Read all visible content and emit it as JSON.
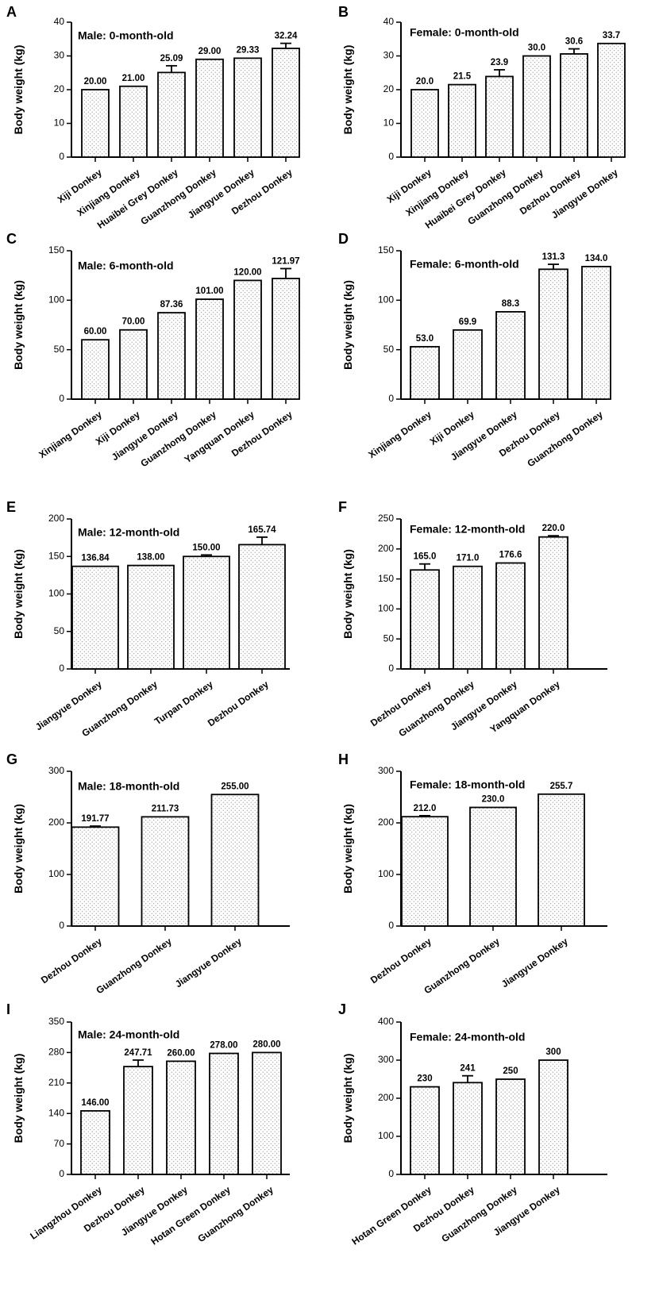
{
  "chart_data": [
    {
      "type": "bar",
      "panel": "A",
      "title": "Male: 0-month-old",
      "ylabel": "Body weight (kg)",
      "xlabel": "",
      "ylim": [
        0,
        40
      ],
      "yticks": [
        0,
        10,
        20,
        30,
        40
      ],
      "categories": [
        "Xiji Donkey",
        "Xinjiang Donkey",
        "Huaibei Grey Donkey",
        "Guanzhong Donkey",
        "Jiangyue Donkey",
        "Dezhou Donkey"
      ],
      "values": [
        20.0,
        21.0,
        25.09,
        29.0,
        29.33,
        32.24
      ],
      "labels": [
        "20.00",
        "21.00",
        "25.09",
        "29.00",
        "29.33",
        "32.24"
      ],
      "errors": [
        0,
        0,
        2.0,
        0,
        0,
        1.5
      ]
    },
    {
      "type": "bar",
      "panel": "B",
      "title": "Female: 0-month-old",
      "ylabel": "Body weight (kg)",
      "xlabel": "",
      "ylim": [
        0,
        40
      ],
      "yticks": [
        0,
        10,
        20,
        30,
        40
      ],
      "categories": [
        "Xiji Donkey",
        "Xinjiang Donkey",
        "Huaibei Grey Donkey",
        "Guanzhong Donkey",
        "Dezhou Donkey",
        "Jiangyue Donkey"
      ],
      "values": [
        20.0,
        21.5,
        23.9,
        30.0,
        30.6,
        33.7
      ],
      "labels": [
        "20.0",
        "21.5",
        "23.9",
        "30.0",
        "30.6",
        "33.7"
      ],
      "errors": [
        0,
        0,
        2.0,
        0,
        1.5,
        0
      ]
    },
    {
      "type": "bar",
      "panel": "C",
      "title": "Male: 6-month-old",
      "ylabel": "Body weight (kg)",
      "xlabel": "",
      "ylim": [
        0,
        150
      ],
      "yticks": [
        0,
        50,
        100,
        150
      ],
      "categories": [
        "Xinjiang Donkey",
        "Xiji Donkey",
        "Jiangyue Donkey",
        "Guanzhong Donkey",
        "Yangquan Donkey",
        "Dezhou Donkey"
      ],
      "values": [
        60.0,
        70.0,
        87.36,
        101.0,
        120.0,
        121.97
      ],
      "labels": [
        "60.00",
        "70.00",
        "87.36",
        "101.00",
        "120.00",
        "121.97"
      ],
      "errors": [
        0,
        0,
        0,
        0,
        0,
        10.0
      ]
    },
    {
      "type": "bar",
      "panel": "D",
      "title": "Female: 6-month-old",
      "ylabel": "Body weight (kg)",
      "xlabel": "",
      "ylim": [
        0,
        150
      ],
      "yticks": [
        0,
        50,
        100,
        150
      ],
      "categories": [
        "Xinjiang Donkey",
        "Xiji Donkey",
        "Jiangyue Donkey",
        "Dezhou Donkey",
        "Guanzhong Donkey"
      ],
      "values": [
        53.0,
        69.9,
        88.3,
        131.3,
        134.0
      ],
      "labels": [
        "53.0",
        "69.9",
        "88.3",
        "131.3",
        "134.0"
      ],
      "errors": [
        0,
        0,
        0,
        5.0,
        0
      ]
    },
    {
      "type": "bar",
      "panel": "E",
      "title": "Male: 12-month-old",
      "ylabel": "Body weight (kg)",
      "xlabel": "",
      "ylim": [
        0,
        200
      ],
      "yticks": [
        0,
        50,
        100,
        150,
        200
      ],
      "categories": [
        "Jiangyue Donkey",
        "Guanzhong Donkey",
        "Turpan Donkey",
        "Dezhou Donkey"
      ],
      "values": [
        136.84,
        138.0,
        150.0,
        165.74
      ],
      "labels": [
        "136.84",
        "138.00",
        "150.00",
        "165.74"
      ],
      "errors": [
        0,
        0,
        2.0,
        10.0
      ]
    },
    {
      "type": "bar",
      "panel": "F",
      "title": "Female: 12-month-old",
      "ylabel": "Body weight (kg)",
      "xlabel": "",
      "ylim": [
        0,
        250
      ],
      "yticks": [
        0,
        50,
        100,
        150,
        200,
        250
      ],
      "categories": [
        "Dezhou Donkey",
        "Guanzhong Donkey",
        "Jiangyue Donkey",
        "Yangquan Donkey"
      ],
      "values": [
        165.0,
        171.0,
        176.6,
        220.0
      ],
      "labels": [
        "165.0",
        "171.0",
        "176.6",
        "220.0"
      ],
      "errors": [
        10.0,
        0,
        0,
        2.0
      ]
    },
    {
      "type": "bar",
      "panel": "G",
      "title": "Male: 18-month-old",
      "ylabel": "Body weight (kg)",
      "xlabel": "",
      "ylim": [
        0,
        300
      ],
      "yticks": [
        0,
        100,
        200,
        300
      ],
      "categories": [
        "Dezhou Donkey",
        "Guanzhong Donkey",
        "Jiangyue Donkey"
      ],
      "values": [
        191.77,
        211.73,
        255.0
      ],
      "labels": [
        "191.77",
        "211.73",
        "255.00"
      ],
      "errors": [
        2.0,
        0,
        0
      ]
    },
    {
      "type": "bar",
      "panel": "H",
      "title": "Female: 18-month-old",
      "ylabel": "Body weight (kg)",
      "xlabel": "",
      "ylim": [
        0,
        300
      ],
      "yticks": [
        0,
        100,
        200,
        300
      ],
      "categories": [
        "Dezhou Donkey",
        "Guanzhong Donkey",
        "Jiangyue Donkey"
      ],
      "values": [
        212.0,
        230.0,
        255.7
      ],
      "labels": [
        "212.0",
        "230.0",
        "255.7"
      ],
      "errors": [
        2.0,
        0,
        0
      ]
    },
    {
      "type": "bar",
      "panel": "I",
      "title": "Male: 24-month-old",
      "ylabel": "Body weight (kg)",
      "xlabel": "",
      "ylim": [
        0,
        350
      ],
      "yticks": [
        0,
        70,
        140,
        210,
        280,
        350
      ],
      "categories": [
        "Liangzhou Donkey",
        "Dezhou Donkey",
        "Jiangyue Donkey",
        "Hotan Green Donkey",
        "Guanzhong Donkey"
      ],
      "values": [
        146.0,
        247.71,
        260.0,
        278.0,
        280.0
      ],
      "labels": [
        "146.00",
        "247.71",
        "260.00",
        "278.00",
        "280.00"
      ],
      "errors": [
        0,
        15.0,
        0,
        0,
        0
      ]
    },
    {
      "type": "bar",
      "panel": "J",
      "title": "Female: 24-month-old",
      "ylabel": "Body weight (kg)",
      "xlabel": "",
      "ylim": [
        0,
        400
      ],
      "yticks": [
        0,
        100,
        200,
        300,
        400
      ],
      "categories": [
        "Hotan Green Donkey",
        "Dezhou Donkey",
        "Guanzhong Donkey",
        "Jiangyue Donkey"
      ],
      "values": [
        230,
        241,
        250,
        300
      ],
      "labels": [
        "230",
        "241",
        "250",
        "300"
      ],
      "errors": [
        0,
        18,
        0,
        0
      ]
    }
  ]
}
